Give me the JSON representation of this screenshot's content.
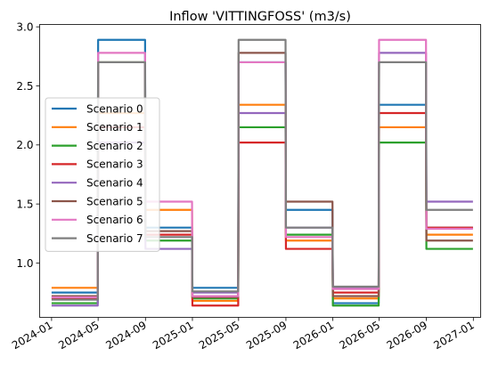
{
  "chart_data": {
    "type": "line",
    "title": "Inflow 'VITTINGFOSS' (m3/s)",
    "xlabel": "",
    "ylabel": "",
    "x_ticks": [
      "2024-01",
      "2024-05",
      "2024-09",
      "2025-01",
      "2025-05",
      "2025-09",
      "2026-01",
      "2026-05",
      "2026-09",
      "2027-01"
    ],
    "y_ticks": [
      "1.0",
      "1.5",
      "2.0",
      "2.5",
      "3.0"
    ],
    "xlim": [
      "2023-12-01",
      "2027-01-20"
    ],
    "ylim": [
      0.54,
      3.02
    ],
    "grid": false,
    "legend_position": "center-left",
    "x": [
      "2024-01-01",
      "2024-04-30",
      "2024-05-01",
      "2024-08-31",
      "2024-09-01",
      "2024-12-31",
      "2025-01-01",
      "2025-04-30",
      "2025-05-01",
      "2025-08-31",
      "2025-09-01",
      "2025-12-31",
      "2026-01-01",
      "2026-04-30",
      "2026-05-01",
      "2026-08-31",
      "2026-09-01",
      "2026-12-31"
    ],
    "series": [
      {
        "name": "Scenario 0",
        "color": "#1f77b4",
        "values": [
          0.75,
          0.75,
          2.89,
          2.89,
          1.3,
          1.3,
          0.79,
          0.79,
          2.7,
          2.7,
          1.45,
          1.45,
          0.66,
          0.66,
          2.34,
          2.34,
          1.3,
          1.3
        ]
      },
      {
        "name": "Scenario 1",
        "color": "#ff7f0e",
        "values": [
          0.79,
          0.79,
          2.27,
          2.27,
          1.45,
          1.45,
          0.68,
          0.68,
          2.34,
          2.34,
          1.19,
          1.19,
          0.7,
          0.7,
          2.15,
          2.15,
          1.24,
          1.24
        ]
      },
      {
        "name": "Scenario 2",
        "color": "#2ca02c",
        "values": [
          0.66,
          0.66,
          2.7,
          2.7,
          1.19,
          1.19,
          0.7,
          0.7,
          2.15,
          2.15,
          1.24,
          1.24,
          0.64,
          0.64,
          2.02,
          2.02,
          1.12,
          1.12
        ]
      },
      {
        "name": "Scenario 3",
        "color": "#d62728",
        "values": [
          0.7,
          0.7,
          2.15,
          2.15,
          1.24,
          1.24,
          0.64,
          0.64,
          2.02,
          2.02,
          1.12,
          1.12,
          0.75,
          0.75,
          2.27,
          2.27,
          1.3,
          1.3
        ]
      },
      {
        "name": "Scenario 4",
        "color": "#9467bd",
        "values": [
          0.64,
          0.64,
          2.02,
          2.02,
          1.12,
          1.12,
          0.75,
          0.75,
          2.27,
          2.27,
          1.3,
          1.3,
          0.79,
          0.79,
          2.78,
          2.78,
          1.52,
          1.52
        ]
      },
      {
        "name": "Scenario 5",
        "color": "#8c564b",
        "values": [
          0.72,
          0.72,
          2.7,
          2.7,
          1.27,
          1.27,
          0.71,
          0.71,
          2.78,
          2.78,
          1.52,
          1.52,
          0.72,
          0.72,
          2.7,
          2.7,
          1.19,
          1.19
        ]
      },
      {
        "name": "Scenario 6",
        "color": "#e377c2",
        "values": [
          0.71,
          0.71,
          2.78,
          2.78,
          1.52,
          1.52,
          0.72,
          0.72,
          2.7,
          2.7,
          1.22,
          1.22,
          0.78,
          0.78,
          2.89,
          2.89,
          1.29,
          1.29
        ]
      },
      {
        "name": "Scenario 7",
        "color": "#7f7f7f",
        "values": [
          0.69,
          0.69,
          2.7,
          2.7,
          1.22,
          1.22,
          0.76,
          0.76,
          2.89,
          2.89,
          1.3,
          1.3,
          0.8,
          0.8,
          2.7,
          2.7,
          1.45,
          1.45
        ]
      }
    ]
  }
}
